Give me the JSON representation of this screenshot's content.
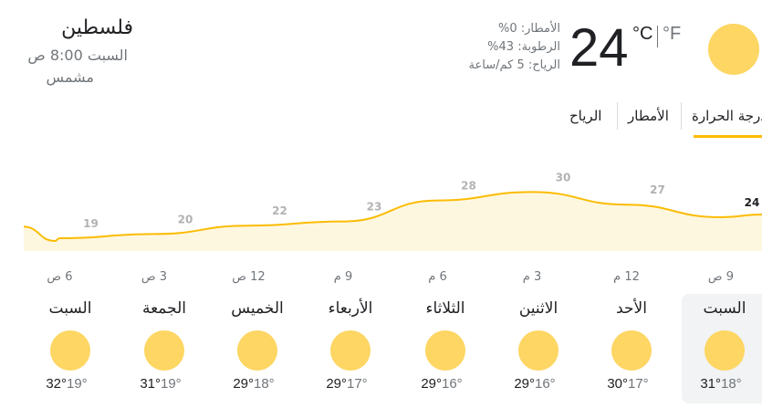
{
  "location": {
    "title": "فلسطين",
    "time": "السبت 8:00 ص",
    "condition": "مشمس"
  },
  "current": {
    "temperature": "24",
    "unit_c": "°C",
    "unit_f": "°F",
    "precipitation": "الأمطار: 0%",
    "humidity": "الرطوبة: 43%",
    "wind": "الرياح: 5 كم/ساعة",
    "icon": "sun-icon"
  },
  "tabs": [
    {
      "label": "درجة الحرارة",
      "active": true
    },
    {
      "label": "الأمطار",
      "active": false
    },
    {
      "label": "الرياح",
      "active": false
    }
  ],
  "colors": {
    "accent": "#fbbc04",
    "sun": "#fdd663",
    "area": "#fef7e0",
    "muted": "#70757a"
  },
  "chart_data": {
    "type": "area",
    "x": [
      "9 ص",
      "12 م",
      "3 م",
      "6 م",
      "9 م",
      "12 ص",
      "3 ص",
      "6 ص"
    ],
    "values": [
      24,
      27,
      30,
      28,
      23,
      22,
      20,
      19
    ],
    "value_labels": [
      "24",
      "27",
      "30",
      "28",
      "23",
      "22",
      "20",
      "19"
    ],
    "title": "",
    "xlabel": "",
    "ylabel": "",
    "grid": false
  },
  "days": [
    {
      "name": "السبت",
      "high": "31°",
      "low": "18°",
      "icon": "sun-icon",
      "selected": true
    },
    {
      "name": "الأحد",
      "high": "30°",
      "low": "17°",
      "icon": "sun-icon",
      "selected": false
    },
    {
      "name": "الاثنين",
      "high": "29°",
      "low": "16°",
      "icon": "sun-icon",
      "selected": false
    },
    {
      "name": "الثلاثاء",
      "high": "29°",
      "low": "16°",
      "icon": "sun-icon",
      "selected": false
    },
    {
      "name": "الأربعاء",
      "high": "29°",
      "low": "17°",
      "icon": "sun-icon",
      "selected": false
    },
    {
      "name": "الخميس",
      "high": "29°",
      "low": "18°",
      "icon": "sun-icon",
      "selected": false
    },
    {
      "name": "الجمعة",
      "high": "31°",
      "low": "19°",
      "icon": "sun-icon",
      "selected": false
    },
    {
      "name": "السبت",
      "high": "32°",
      "low": "19°",
      "icon": "sun-icon",
      "selected": false
    }
  ]
}
